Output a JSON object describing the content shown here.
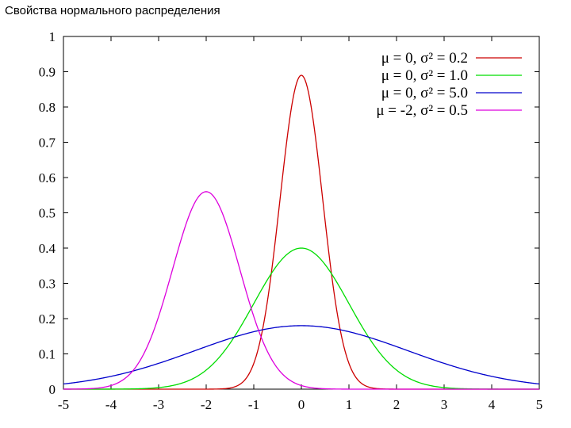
{
  "page_title": "Свойства нормального распределения",
  "chart_data": {
    "type": "line",
    "title": "",
    "xlabel": "",
    "ylabel": "",
    "xlim": [
      -5,
      5
    ],
    "ylim": [
      0,
      1
    ],
    "x_ticks": [
      "-5",
      "-4",
      "-3",
      "-2",
      "-1",
      "0",
      "1",
      "2",
      "3",
      "4",
      "5"
    ],
    "y_ticks": [
      "0",
      "0.1",
      "0.2",
      "0.3",
      "0.4",
      "0.5",
      "0.6",
      "0.7",
      "0.8",
      "0.9",
      "1"
    ],
    "grid": false,
    "legend_position": "top-right",
    "series": [
      {
        "name": "μ = 0, σ² = 0.2",
        "mu": 0,
        "variance": 0.2,
        "color": "#cc0000",
        "peak": 0.89
      },
      {
        "name": "μ = 0, σ² = 1.0",
        "mu": 0,
        "variance": 1.0,
        "color": "#00dd00",
        "peak": 0.4
      },
      {
        "name": "μ = 0, σ² = 5.0",
        "mu": 0,
        "variance": 5.0,
        "color": "#0000cc",
        "peak": 0.18
      },
      {
        "name": "μ = -2, σ² = 0.5",
        "mu": -2,
        "variance": 0.5,
        "color": "#dd00dd",
        "peak": 0.56
      }
    ]
  }
}
